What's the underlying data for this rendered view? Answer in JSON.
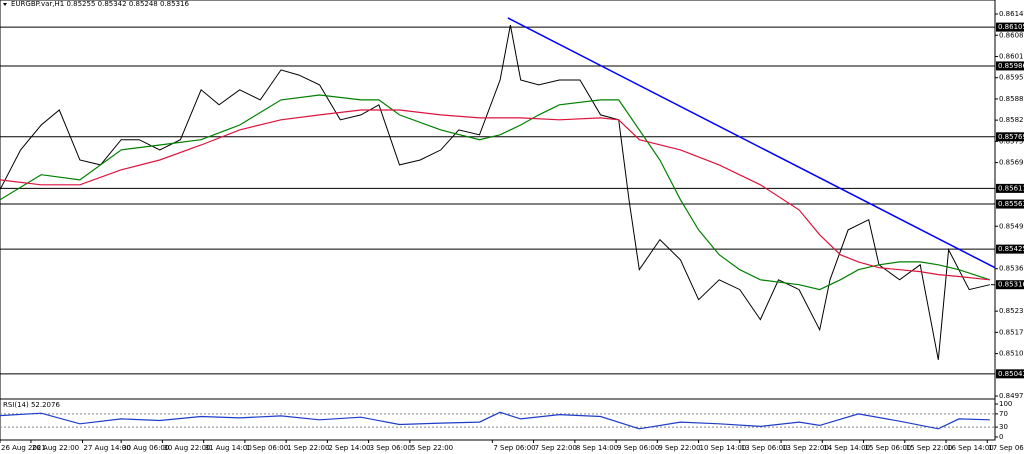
{
  "chart_data": [
    {
      "type": "line",
      "title": "EURGBP.var,H1  0.85255 0.85342 0.85248 0.85316",
      "xlim": [
        0,
        386
      ],
      "ylim": [
        0.84969,
        0.86188
      ],
      "yticks": [
        0.86145,
        0.8608,
        0.86015,
        0.8595,
        0.85885,
        0.8582,
        0.85755,
        0.8569,
        0.85495,
        0.85365,
        0.85235,
        0.8517,
        0.85105,
        0.84975
      ],
      "xticks": [
        {
          "value": 0,
          "label": "26 Aug 2021"
        },
        {
          "value": 12,
          "label": "26 Aug 22:00"
        },
        {
          "value": 32,
          "label": "27 Aug 14:00"
        },
        {
          "value": 47,
          "label": "30 Aug 06:00"
        },
        {
          "value": 63,
          "label": "30 Aug 22:00"
        },
        {
          "value": 79,
          "label": "31 Aug 14:00"
        },
        {
          "value": 95,
          "label": "1 Sep 06:00"
        },
        {
          "value": 111,
          "label": "1 Sep 22:00"
        },
        {
          "value": 127,
          "label": "2 Sep 14:00"
        },
        {
          "value": 143,
          "label": "3 Sep 06:00"
        },
        {
          "value": 159,
          "label": "5 Sep 22:00"
        },
        {
          "value": 191,
          "label": "7 Sep 06:00"
        },
        {
          "value": 207,
          "label": "7 Sep 22:00"
        },
        {
          "value": 223,
          "label": "8 Sep 14:00"
        },
        {
          "value": 239,
          "label": "9 Sep 06:00"
        },
        {
          "value": 255,
          "label": "9 Sep 22:00"
        },
        {
          "value": 271,
          "label": "10 Sep 14:00"
        },
        {
          "value": 287,
          "label": "13 Sep 06:00"
        },
        {
          "value": 303,
          "label": "13 Sep 22:00"
        },
        {
          "value": 319,
          "label": "14 Sep 14:00"
        },
        {
          "value": 335,
          "label": "15 Sep 06:00"
        },
        {
          "value": 351,
          "label": "15 Sep 22:00"
        },
        {
          "value": 367,
          "label": "16 Sep 14:00"
        },
        {
          "value": 383,
          "label": "17 Sep 06:00"
        }
      ],
      "levels": [
        0.86105,
        0.85986,
        0.85769,
        0.85611,
        0.85563,
        0.85425,
        0.85043
      ],
      "last_price": 0.85316,
      "trendline": {
        "color": "#0000ff",
        "x": [
          197,
          386
        ],
        "values": [
          0.86133,
          0.85368
        ]
      },
      "series": [
        {
          "color": "#000000",
          "x": [
            0,
            8,
            16,
            23,
            31,
            39,
            47,
            54,
            62,
            70,
            78,
            85,
            93,
            101,
            109,
            116,
            124,
            132,
            140,
            147,
            155,
            163,
            171,
            178,
            186,
            194,
            198,
            202,
            209,
            217,
            225,
            233,
            240,
            244,
            248,
            256,
            264,
            271,
            279,
            287,
            295,
            302,
            310,
            318,
            322,
            329,
            337,
            341,
            349,
            357,
            364,
            368,
            376,
            384
          ],
          "values": [
            0.85607,
            0.85729,
            0.85805,
            0.85851,
            0.85698,
            0.85683,
            0.8576,
            0.8576,
            0.85729,
            0.8576,
            0.85913,
            0.85867,
            0.85913,
            0.85882,
            0.85974,
            0.85958,
            0.85928,
            0.85821,
            0.85836,
            0.85867,
            0.85683,
            0.85698,
            0.85729,
            0.8579,
            0.85775,
            0.85943,
            0.86111,
            0.85943,
            0.85928,
            0.85943,
            0.85943,
            0.85836,
            0.85821,
            0.85576,
            0.85362,
            0.85454,
            0.85392,
            0.8527,
            0.85331,
            0.85301,
            0.85209,
            0.85331,
            0.85301,
            0.85178,
            0.85331,
            0.85484,
            0.85515,
            0.85377,
            0.85331,
            0.85377,
            0.85086,
            0.85423,
            0.85301,
            0.85316
          ]
        },
        {
          "color": "#008000",
          "x": [
            0,
            16,
            31,
            47,
            62,
            78,
            93,
            109,
            124,
            140,
            147,
            155,
            171,
            186,
            194,
            202,
            209,
            217,
            233,
            240,
            248,
            256,
            264,
            271,
            279,
            287,
            295,
            310,
            318,
            326,
            333,
            341,
            349,
            357,
            364,
            372,
            384
          ],
          "values": [
            0.85576,
            0.85653,
            0.85637,
            0.85729,
            0.85744,
            0.8576,
            0.85805,
            0.85882,
            0.85897,
            0.85882,
            0.85882,
            0.85836,
            0.8579,
            0.8576,
            0.85775,
            0.85805,
            0.85836,
            0.85867,
            0.85882,
            0.85882,
            0.8579,
            0.85698,
            0.85576,
            0.85484,
            0.85408,
            0.85362,
            0.85331,
            0.85316,
            0.85301,
            0.85331,
            0.85362,
            0.85377,
            0.85386,
            0.85386,
            0.85377,
            0.85362,
            0.85331
          ]
        },
        {
          "color": "#dc143c",
          "x": [
            0,
            16,
            31,
            47,
            62,
            78,
            93,
            109,
            124,
            140,
            155,
            171,
            186,
            202,
            217,
            233,
            240,
            248,
            264,
            279,
            295,
            310,
            318,
            326,
            333,
            341,
            349,
            357,
            364,
            372,
            384
          ],
          "values": [
            0.85637,
            0.85622,
            0.85622,
            0.85668,
            0.85698,
            0.85744,
            0.8579,
            0.85821,
            0.85836,
            0.85851,
            0.85851,
            0.85836,
            0.85827,
            0.85827,
            0.85821,
            0.85827,
            0.85821,
            0.8576,
            0.85729,
            0.85683,
            0.85622,
            0.85545,
            0.85469,
            0.85408,
            0.85386,
            0.85368,
            0.85362,
            0.85356,
            0.85347,
            0.85341,
            0.85331
          ]
        }
      ]
    },
    {
      "type": "line",
      "title": "RSI(14) 52.2076",
      "xlim": [
        0,
        386
      ],
      "ylim": [
        0,
        100
      ],
      "yticks": [
        100,
        70,
        30,
        0
      ],
      "levels": [
        70,
        30
      ],
      "series": [
        {
          "color": "#1e3cc8",
          "x": [
            0,
            16,
            31,
            47,
            62,
            78,
            93,
            109,
            124,
            140,
            155,
            171,
            186,
            194,
            202,
            217,
            233,
            248,
            264,
            279,
            295,
            310,
            318,
            333,
            349,
            364,
            372,
            384
          ],
          "values": [
            65,
            72,
            40,
            55,
            50,
            62,
            58,
            64,
            52,
            60,
            38,
            42,
            45,
            75,
            55,
            68,
            62,
            25,
            45,
            40,
            32,
            45,
            35,
            70,
            48,
            25,
            55,
            52
          ]
        }
      ]
    }
  ]
}
